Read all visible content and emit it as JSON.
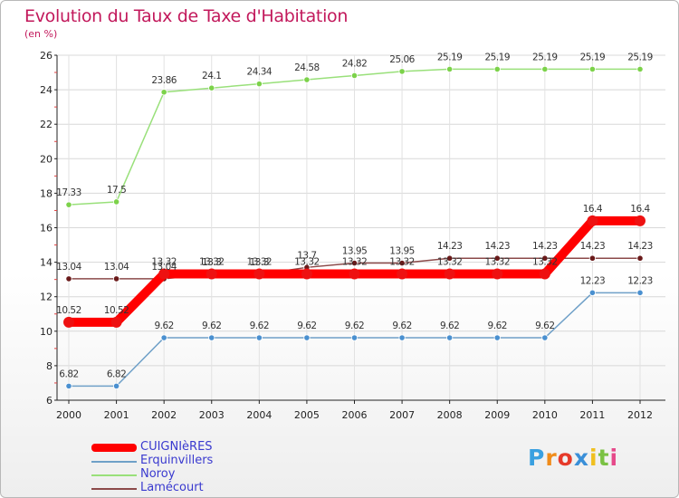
{
  "chart_data": {
    "type": "line",
    "title": "Evolution du Taux de Taxe d'Habitation",
    "ylabel": "(en %)",
    "xlabel": "",
    "ylim": [
      6,
      26
    ],
    "yticks": [
      6,
      8,
      10,
      12,
      14,
      16,
      18,
      20,
      22,
      24,
      26
    ],
    "x": [
      "2000",
      "2001",
      "2002",
      "2003",
      "2004",
      "2005",
      "2006",
      "2007",
      "2008",
      "2009",
      "2010",
      "2011",
      "2012"
    ],
    "legend_position": "bottom-left",
    "series": [
      {
        "name": "CUIGNIèRES",
        "color": "#ff0000",
        "marker": "#ee1111",
        "values": [
          10.52,
          10.52,
          13.32,
          13.32,
          13.32,
          13.32,
          13.32,
          13.32,
          13.32,
          13.32,
          13.32,
          16.4,
          16.4
        ],
        "labels": [
          "10.52",
          "10.52",
          "13.32",
          "13.32",
          "13.32",
          "13.32",
          "13.32",
          "13.32",
          "13.32",
          "13.32",
          "13.32",
          "16.4",
          "16.4"
        ]
      },
      {
        "name": "Erquinvillers",
        "color": "#6fa0c8",
        "marker": "#4a90d0",
        "values": [
          6.82,
          6.82,
          9.62,
          9.62,
          9.62,
          9.62,
          9.62,
          9.62,
          9.62,
          9.62,
          9.62,
          12.23,
          12.23
        ],
        "labels": [
          "6.82",
          "6.82",
          "9.62",
          "9.62",
          "9.62",
          "9.62",
          "9.62",
          "9.62",
          "9.62",
          "9.62",
          "9.62",
          "12.23",
          "12.23"
        ]
      },
      {
        "name": "Noroy",
        "color": "#99e07a",
        "marker": "#7cd24a",
        "values": [
          17.33,
          17.5,
          23.86,
          24.1,
          24.34,
          24.58,
          24.82,
          25.06,
          25.19,
          25.19,
          25.19,
          25.19,
          25.19
        ],
        "labels": [
          "17.33",
          "17.5",
          "23.86",
          "24.1",
          "24.34",
          "24.58",
          "24.82",
          "25.06",
          "25.19",
          "25.19",
          "25.19",
          "25.19",
          "25.19"
        ]
      },
      {
        "name": "Lamécourt",
        "color": "#8b4a4a",
        "marker": "#6a1a1a",
        "values": [
          13.04,
          13.04,
          13.04,
          13.3,
          13.3,
          13.7,
          13.95,
          13.95,
          14.23,
          14.23,
          14.23,
          14.23,
          14.23
        ],
        "labels": [
          "13.04",
          "13.04",
          "13.04",
          "13.3",
          "13.3",
          "13.7",
          "13.95",
          "13.95",
          "14.23",
          "14.23",
          "14.23",
          "14.23",
          "14.23"
        ]
      }
    ]
  },
  "branding": {
    "logo_letters": [
      "P",
      "r",
      "o",
      "x",
      "i",
      "t",
      "i"
    ],
    "logo_colors": [
      "#3aa0e0",
      "#f08c1a",
      "#e63a2a",
      "#3a8fd8",
      "#f0c020",
      "#7ac143",
      "#e64a8a"
    ]
  }
}
